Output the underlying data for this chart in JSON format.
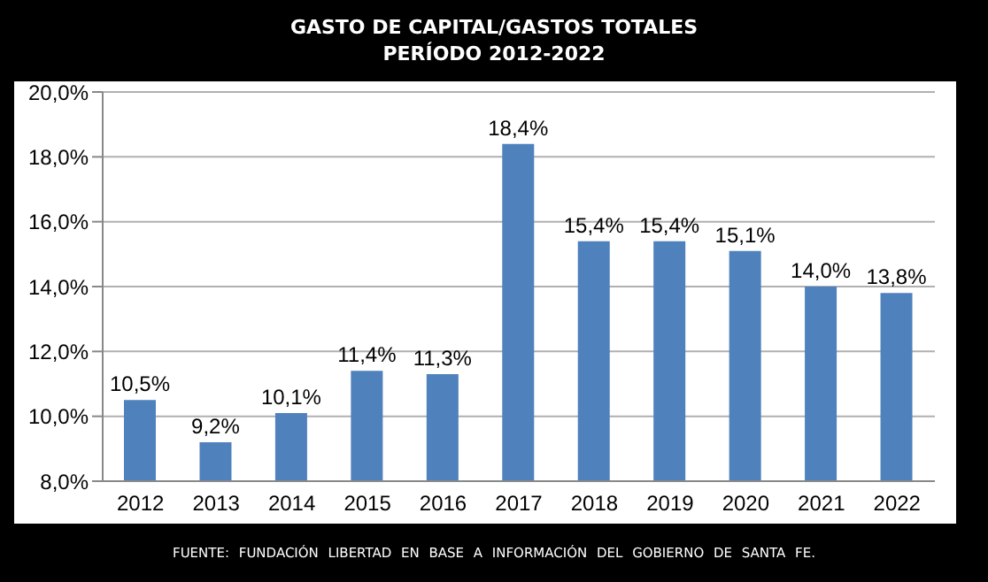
{
  "chart_data": {
    "type": "bar",
    "title": "GASTO DE CAPITAL/GASTOS TOTALES",
    "subtitle": "PERÍODO 2012-2022",
    "categories": [
      "2012",
      "2013",
      "2014",
      "2015",
      "2016",
      "2017",
      "2018",
      "2019",
      "2020",
      "2021",
      "2022"
    ],
    "values": [
      10.5,
      9.2,
      10.1,
      11.4,
      11.3,
      18.4,
      15.4,
      15.4,
      15.1,
      14.0,
      13.8
    ],
    "value_labels": [
      "10,5%",
      "9,2%",
      "10,1%",
      "11,4%",
      "11,3%",
      "18,4%",
      "15,4%",
      "15,4%",
      "15,1%",
      "14,0%",
      "13,8%"
    ],
    "color": "#4f81bd",
    "ylim": [
      8,
      20
    ],
    "yticks": [
      {
        "value": 8,
        "label": "8,0%"
      },
      {
        "value": 10,
        "label": "10,0%"
      },
      {
        "value": 12,
        "label": "12,0%"
      },
      {
        "value": 14,
        "label": "14,0%"
      },
      {
        "value": 16,
        "label": "16,0%"
      },
      {
        "value": 18,
        "label": "18,0%"
      },
      {
        "value": 20,
        "label": "20,0%"
      }
    ],
    "grid": "y",
    "annotations": [
      "FUENTE: FUNDACIÓN LIBERTAD EN BASE A INFORMACIÓN DEL GOBIERNO DE SANTA FE."
    ]
  }
}
